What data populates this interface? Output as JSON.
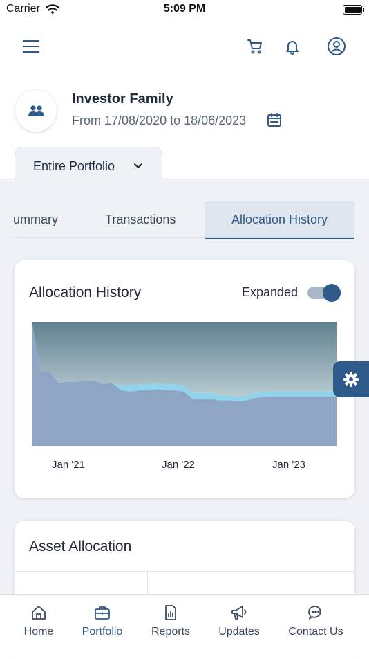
{
  "status_bar": {
    "carrier": "Carrier",
    "time": "5:09 PM"
  },
  "profile": {
    "name": "Investor Family",
    "date_range": "From 17/08/2020 to 18/06/2023"
  },
  "portfolio_selector": {
    "label": "Entire Portfolio"
  },
  "tabs": [
    {
      "label": "ummary",
      "active": false
    },
    {
      "label": "Transactions",
      "active": false
    },
    {
      "label": "Allocation History",
      "active": true
    }
  ],
  "allocation_card": {
    "title": "Allocation History",
    "toggle_label": "Expanded",
    "toggle_on": true
  },
  "chart_data": {
    "type": "area",
    "x_ticks": [
      "Jan '21",
      "Jan '22",
      "Jan '23"
    ],
    "x": [
      "Aug '20",
      "Sep '20",
      "Oct '20",
      "Nov '20",
      "Dec '20",
      "Jan '21",
      "Feb '21",
      "Mar '21",
      "Apr '21",
      "May '21",
      "Jun '21",
      "Jul '21",
      "Aug '21",
      "Sep '21",
      "Oct '21",
      "Nov '21",
      "Dec '21",
      "Jan '22",
      "Feb '22",
      "Mar '22",
      "Apr '22",
      "May '22",
      "Jun '22",
      "Jul '22",
      "Aug '22",
      "Sep '22",
      "Oct '22",
      "Nov '22",
      "Dec '22",
      "Jan '23",
      "Feb '23",
      "Mar '23",
      "Apr '23",
      "May '23",
      "Jun '23"
    ],
    "ylim": [
      0,
      100
    ],
    "series": [
      {
        "color": "#8ea6c4",
        "values": [
          100,
          60,
          60,
          51,
          52,
          52,
          53,
          53,
          50,
          51,
          45,
          44,
          45,
          45,
          46,
          45,
          45,
          44,
          38,
          38,
          38,
          37,
          37,
          36,
          37,
          39,
          40,
          40,
          40,
          40,
          40,
          40,
          40,
          40,
          40
        ]
      },
      {
        "color": "#8fd4ec",
        "values": [
          0,
          0,
          0,
          0,
          0,
          0,
          0,
          0,
          0,
          0,
          4,
          5,
          5,
          5,
          5,
          5,
          5,
          5,
          5,
          5,
          5,
          4,
          4,
          4,
          4,
          4,
          4,
          4,
          4,
          4,
          4,
          4,
          4,
          4,
          4
        ]
      },
      {
        "color": "#6b8a95",
        "values": [
          0,
          40,
          40,
          49,
          48,
          48,
          47,
          47,
          50,
          49,
          51,
          51,
          50,
          50,
          49,
          50,
          50,
          51,
          57,
          57,
          57,
          59,
          59,
          60,
          59,
          57,
          56,
          56,
          56,
          56,
          56,
          56,
          56,
          56,
          56
        ]
      }
    ]
  },
  "asset_card": {
    "title": "Asset Allocation"
  },
  "bottom_nav": [
    {
      "label": "Home",
      "icon": "home-icon",
      "active": false
    },
    {
      "label": "Portfolio",
      "icon": "briefcase-icon",
      "active": true
    },
    {
      "label": "Reports",
      "icon": "report-icon",
      "active": false
    },
    {
      "label": "Updates",
      "icon": "megaphone-icon",
      "active": false
    },
    {
      "label": "Contact Us",
      "icon": "chat-icon",
      "active": false
    }
  ],
  "colors": {
    "primary": "#2f5b8a",
    "background": "#eef2f6",
    "text": "#1f2a3a"
  }
}
